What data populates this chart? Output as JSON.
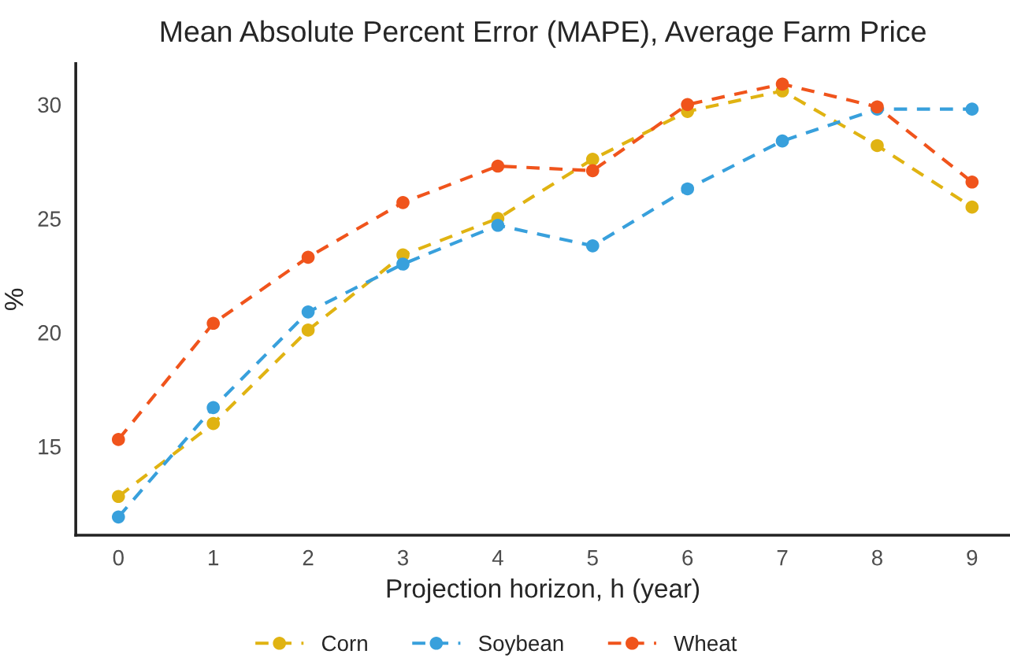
{
  "chart_data": {
    "type": "line",
    "title": "Mean Absolute Percent Error (MAPE), Average Farm Price",
    "xlabel": "Projection horizon, h (year)",
    "ylabel": "%",
    "x": [
      0,
      1,
      2,
      3,
      4,
      5,
      6,
      7,
      8,
      9
    ],
    "series": [
      {
        "name": "Corn",
        "color": "#e0b312",
        "values": [
          12.8,
          16.0,
          20.1,
          23.4,
          25.0,
          27.6,
          29.7,
          30.6,
          28.2,
          25.5
        ]
      },
      {
        "name": "Soybean",
        "color": "#38a0dc",
        "values": [
          11.9,
          16.7,
          20.9,
          23.0,
          24.7,
          23.8,
          26.3,
          28.4,
          29.8,
          29.8
        ]
      },
      {
        "name": "Wheat",
        "color": "#f0541c",
        "values": [
          15.3,
          20.4,
          23.3,
          25.7,
          27.3,
          27.1,
          30.0,
          30.9,
          29.9,
          26.6
        ]
      }
    ],
    "xlim": [
      -0.45,
      9.4
    ],
    "ylim": [
      11.1,
      31.8
    ],
    "xticks": [
      0,
      1,
      2,
      3,
      4,
      5,
      6,
      7,
      8,
      9
    ],
    "yticks": [
      15,
      20,
      25,
      30
    ],
    "marker": "circle",
    "line_style": "dashed",
    "grid": false,
    "legend": "bottom"
  }
}
